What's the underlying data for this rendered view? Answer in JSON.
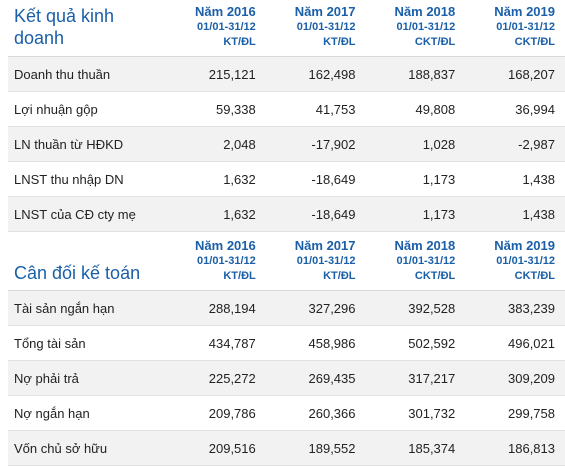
{
  "income": {
    "title": "Kết quả kinh doanh",
    "columns": [
      {
        "year": "Năm 2016",
        "period": "01/01-31/12",
        "audit": "KT/ĐL"
      },
      {
        "year": "Năm 2017",
        "period": "01/01-31/12",
        "audit": "KT/ĐL"
      },
      {
        "year": "Năm 2018",
        "period": "01/01-31/12",
        "audit": "CKT/ĐL"
      },
      {
        "year": "Năm 2019",
        "period": "01/01-31/12",
        "audit": "CKT/ĐL"
      }
    ],
    "rows": [
      {
        "label": "Doanh thu thuần",
        "values": [
          "215,121",
          "162,498",
          "188,837",
          "168,207"
        ]
      },
      {
        "label": "Lợi nhuận gộp",
        "values": [
          "59,338",
          "41,753",
          "49,808",
          "36,994"
        ]
      },
      {
        "label": "LN thuần từ HĐKD",
        "values": [
          "2,048",
          "-17,902",
          "1,028",
          "-2,987"
        ]
      },
      {
        "label": "LNST thu nhập DN",
        "values": [
          "1,632",
          "-18,649",
          "1,173",
          "1,438"
        ]
      },
      {
        "label": "LNST của CĐ cty mẹ",
        "values": [
          "1,632",
          "-18,649",
          "1,173",
          "1,438"
        ]
      }
    ]
  },
  "balance": {
    "title": "Cân đối kế toán",
    "columns": [
      {
        "year": "Năm 2016",
        "period": "01/01-31/12",
        "audit": "KT/ĐL"
      },
      {
        "year": "Năm 2017",
        "period": "01/01-31/12",
        "audit": "KT/ĐL"
      },
      {
        "year": "Năm 2018",
        "period": "01/01-31/12",
        "audit": "CKT/ĐL"
      },
      {
        "year": "Năm 2019",
        "period": "01/01-31/12",
        "audit": "CKT/ĐL"
      }
    ],
    "rows": [
      {
        "label": "Tài sản ngắn hạn",
        "values": [
          "288,194",
          "327,296",
          "392,528",
          "383,239"
        ]
      },
      {
        "label": "Tổng tài sản",
        "values": [
          "434,787",
          "458,986",
          "502,592",
          "496,021"
        ]
      },
      {
        "label": "Nợ phải trả",
        "values": [
          "225,272",
          "269,435",
          "317,217",
          "309,209"
        ]
      },
      {
        "label": "Nợ ngắn hạn",
        "values": [
          "209,786",
          "260,366",
          "301,732",
          "299,758"
        ]
      },
      {
        "label": "Vốn chủ sở hữu",
        "values": [
          "209,516",
          "189,552",
          "185,374",
          "186,813"
        ]
      }
    ]
  },
  "colors": {
    "accent": "#1a5fa8",
    "row_shade": "#f2f2f2",
    "border": "#e2e2e2"
  }
}
